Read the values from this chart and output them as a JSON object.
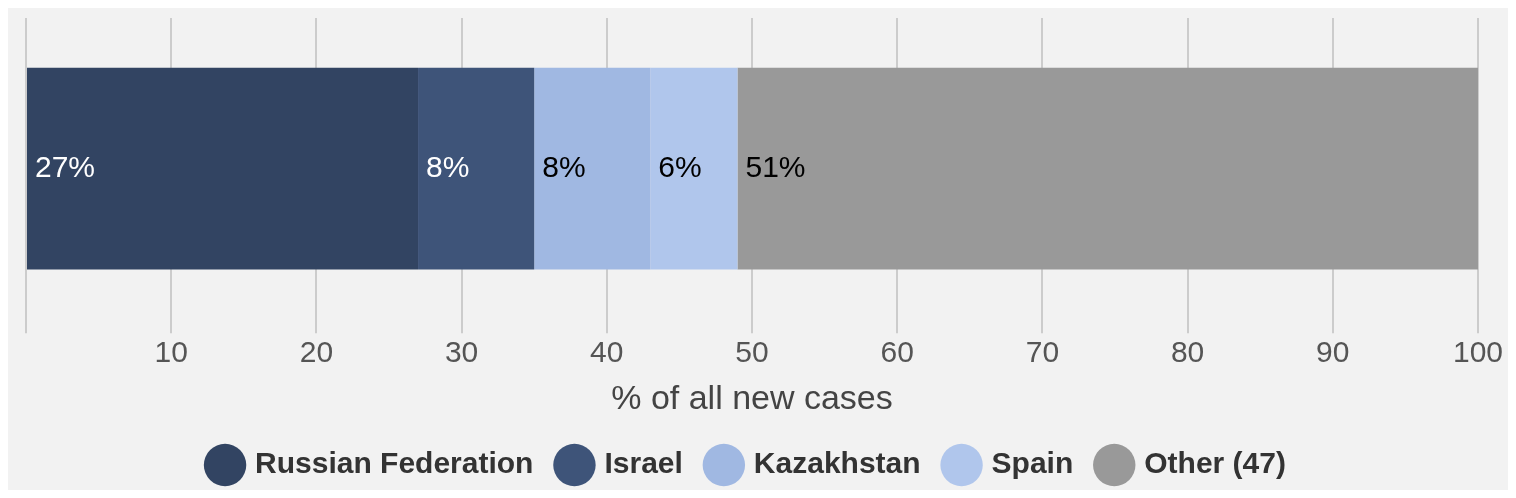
{
  "chart_data": {
    "type": "bar",
    "orientation": "horizontal",
    "stacked": true,
    "categories": [
      null
    ],
    "xlabel": "% of all new cases",
    "xlim": [
      0,
      100
    ],
    "xticks": [
      {
        "value": 0,
        "label": null
      },
      10,
      20,
      30,
      40,
      50,
      60,
      70,
      80,
      90,
      100
    ],
    "grid": "x",
    "legend": "bottom",
    "marker": "circle",
    "series": [
      {
        "name": "Russian Federation",
        "color": "#324462",
        "values": [
          27
        ],
        "value_labels": [
          "27%"
        ]
      },
      {
        "name": "Israel",
        "color": "#3e5479",
        "values": [
          8
        ],
        "value_labels": [
          "8%"
        ]
      },
      {
        "name": "Kazakhstan",
        "color": "#a0b8e2",
        "values": [
          8
        ],
        "value_labels": [
          "8%"
        ]
      },
      {
        "name": "Spain",
        "color": "#b0c6ec",
        "values": [
          6
        ],
        "value_labels": [
          "6%"
        ]
      },
      {
        "name": "Other (47)",
        "color": "#999999",
        "values": [
          51
        ],
        "value_labels": [
          "51%"
        ]
      }
    ]
  }
}
